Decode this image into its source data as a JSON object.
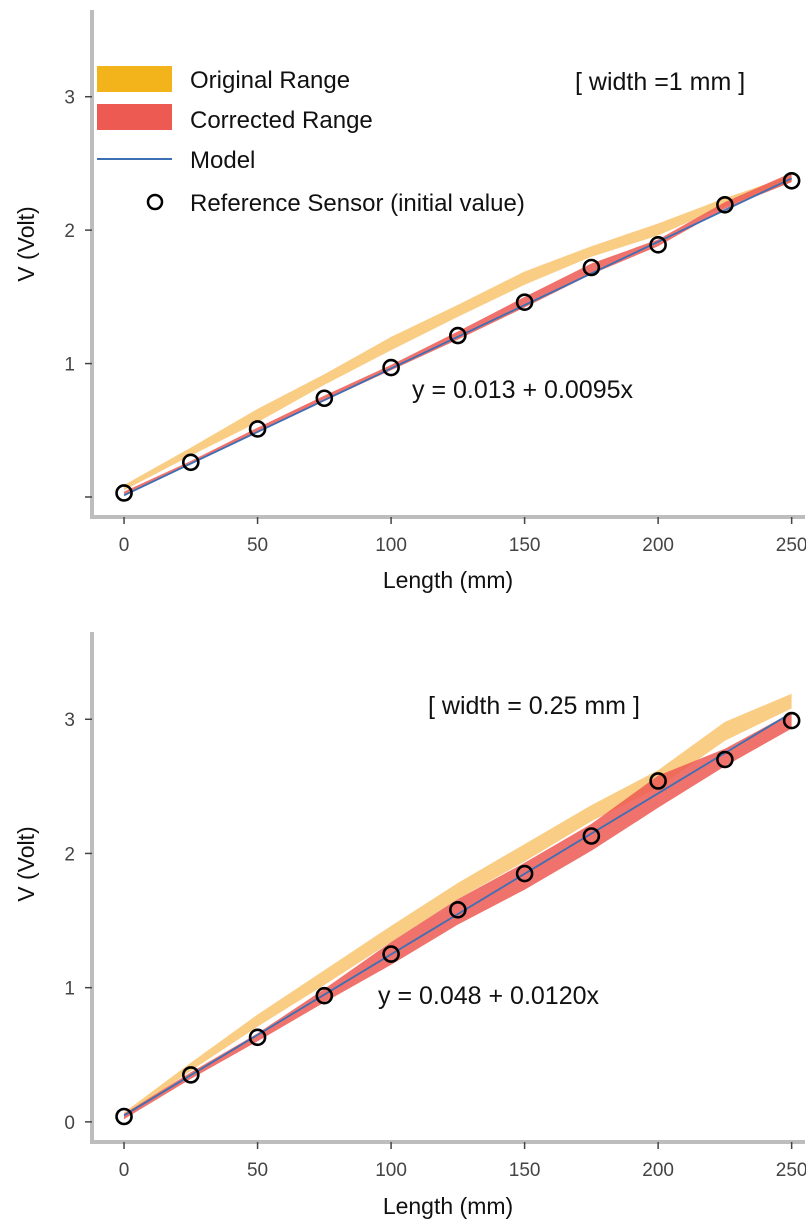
{
  "colors": {
    "original": "#F2B31B",
    "original_band": "#F9C877",
    "corrected": "#EC5A52",
    "model": "#3D6FB5",
    "axis": "#BDBDBD",
    "marker_stroke": "#000000"
  },
  "legend": {
    "original": "Original Range",
    "corrected": "Corrected Range",
    "model": "Model",
    "reference": "Reference Sensor (initial value)"
  },
  "chart_data": [
    {
      "type": "line",
      "xlabel": "Length (mm)",
      "ylabel": "V (Volt)",
      "xlim": [
        -12,
        255
      ],
      "ylim": [
        -0.15,
        3.65
      ],
      "xticks": [
        0,
        50,
        100,
        150,
        200,
        250
      ],
      "xtick_labels": [
        "0",
        "50",
        "100",
        "150",
        "200",
        "250"
      ],
      "yticks": [
        0,
        1,
        2,
        3
      ],
      "ytick_labels": [
        "",
        "1",
        "2",
        "3"
      ],
      "annotation_width": "[ width =1 mm ]",
      "equation": "y = 0.013 + 0.0095x",
      "model": {
        "intercept": 0.013,
        "slope": 0.0095
      },
      "reference_sensor": {
        "x": [
          0,
          25,
          50,
          75,
          100,
          125,
          150,
          175,
          200,
          225,
          250
        ],
        "y": [
          0.03,
          0.26,
          0.51,
          0.74,
          0.97,
          1.21,
          1.46,
          1.72,
          1.89,
          2.19,
          2.37
        ]
      },
      "original_range": {
        "x": [
          0,
          25,
          50,
          75,
          100,
          125,
          150,
          175,
          200,
          225,
          250
        ],
        "lower": [
          0.05,
          0.31,
          0.56,
          0.84,
          1.1,
          1.35,
          1.59,
          1.8,
          1.96,
          2.18,
          2.36
        ],
        "upper": [
          0.09,
          0.37,
          0.66,
          0.92,
          1.2,
          1.44,
          1.69,
          1.88,
          2.05,
          2.24,
          2.41
        ]
      },
      "corrected_range": {
        "x": [
          0,
          25,
          50,
          75,
          100,
          125,
          150,
          175,
          200,
          225,
          250
        ],
        "lower": [
          0.02,
          0.25,
          0.49,
          0.72,
          0.95,
          1.18,
          1.42,
          1.67,
          1.88,
          2.16,
          2.36
        ],
        "upper": [
          0.04,
          0.27,
          0.52,
          0.76,
          0.99,
          1.24,
          1.5,
          1.75,
          1.93,
          2.21,
          2.43
        ]
      }
    },
    {
      "type": "line",
      "xlabel": "Length (mm)",
      "ylabel": "V (Volt)",
      "xlim": [
        -12,
        255
      ],
      "ylim": [
        -0.15,
        3.65
      ],
      "xticks": [
        0,
        50,
        100,
        150,
        200,
        250
      ],
      "xtick_labels": [
        "0",
        "50",
        "100",
        "150",
        "200",
        "250"
      ],
      "yticks": [
        0,
        1,
        2,
        3
      ],
      "ytick_labels": [
        "0",
        "1",
        "2",
        "3"
      ],
      "annotation_width": "[ width = 0.25 mm  ]",
      "equation": "y = 0.048 + 0.0120x",
      "model": {
        "intercept": 0.048,
        "slope": 0.012
      },
      "reference_sensor": {
        "x": [
          0,
          25,
          50,
          75,
          100,
          125,
          150,
          175,
          200,
          225,
          250
        ],
        "y": [
          0.04,
          0.35,
          0.63,
          0.94,
          1.25,
          1.58,
          1.85,
          2.13,
          2.54,
          2.7,
          2.99
        ]
      },
      "original_range": {
        "x": [
          0,
          25,
          50,
          75,
          100,
          125,
          150,
          175,
          200,
          225,
          250
        ],
        "lower": [
          0.04,
          0.38,
          0.71,
          1.02,
          1.34,
          1.66,
          1.94,
          2.24,
          2.49,
          2.84,
          3.08
        ],
        "upper": [
          0.07,
          0.44,
          0.8,
          1.13,
          1.46,
          1.78,
          2.07,
          2.36,
          2.62,
          2.98,
          3.19
        ]
      },
      "corrected_range": {
        "x": [
          0,
          25,
          50,
          75,
          100,
          125,
          150,
          175,
          200,
          225,
          250
        ],
        "lower": [
          0.02,
          0.32,
          0.6,
          0.89,
          1.17,
          1.47,
          1.73,
          2.02,
          2.34,
          2.65,
          2.93
        ],
        "upper": [
          0.06,
          0.37,
          0.66,
          0.99,
          1.34,
          1.66,
          1.93,
          2.22,
          2.58,
          2.78,
          3.05
        ]
      }
    }
  ]
}
